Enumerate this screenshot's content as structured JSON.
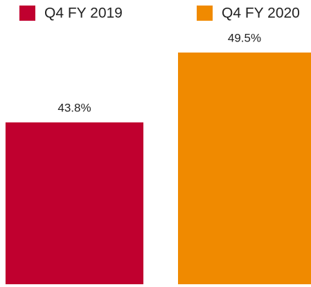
{
  "chart_data": {
    "type": "bar",
    "series": [
      {
        "name": "Q4 FY 2019",
        "color": "#c0002f",
        "values": [
          43.8
        ],
        "value_labels": [
          "43.8%"
        ]
      },
      {
        "name": "Q4 FY 2020",
        "color": "#f08a00",
        "values": [
          49.5
        ],
        "value_labels": [
          "49.5%"
        ]
      }
    ],
    "ylim": [
      30.6,
      50.4
    ],
    "legend": "top"
  }
}
